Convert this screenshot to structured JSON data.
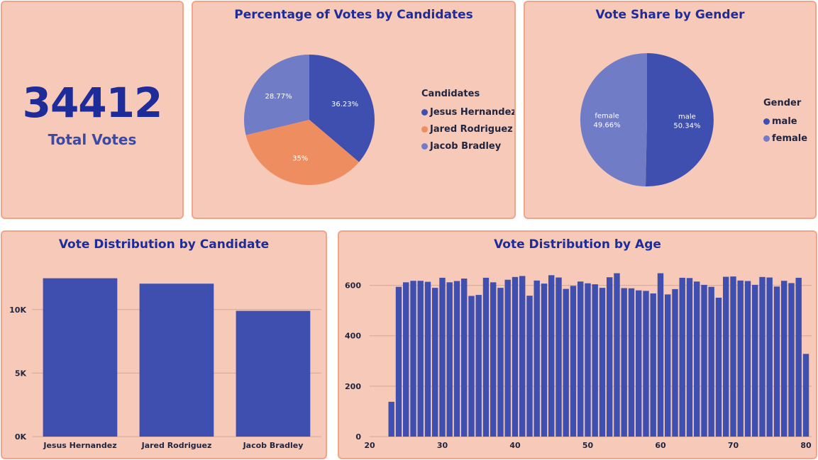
{
  "kpi": {
    "value": "34412",
    "label": "Total Votes"
  },
  "colors": {
    "blue": "#3f4fb0",
    "orange": "#ee8d60",
    "lavender": "#717cc6",
    "grid": "#d4a796"
  },
  "chart_data": [
    {
      "type": "pie",
      "title": "Percentage of Votes by Candidates",
      "legend_title": "Candidates",
      "legend_position": "right",
      "slices": [
        {
          "name": "Jesus Hernandez",
          "value": 36.23,
          "label": "36.23%",
          "color": "#3f4fb0"
        },
        {
          "name": "Jared Rodriguez",
          "value": 35,
          "label": "35%",
          "color": "#ee8d60"
        },
        {
          "name": "Jacob Bradley",
          "value": 28.77,
          "label": "28.77%",
          "color": "#717cc6"
        }
      ]
    },
    {
      "type": "pie",
      "title": "Vote Share by Gender",
      "legend_title": "Gender",
      "legend_position": "right",
      "slices": [
        {
          "name": "male",
          "value": 50.34,
          "label": "50.34%",
          "color": "#3f4fb0"
        },
        {
          "name": "female",
          "value": 49.66,
          "label": "49.66%",
          "color": "#717cc6"
        }
      ]
    },
    {
      "type": "bar",
      "title": "Vote Distribution by Candidate",
      "categories": [
        "Jesus Hernandez",
        "Jared Rodriguez",
        "Jacob Bradley"
      ],
      "values": [
        12468,
        12044,
        9900
      ],
      "ylim": [
        0,
        12500
      ],
      "yticks": [
        0,
        5000,
        10000
      ],
      "ytick_labels": [
        "0K",
        "5K",
        "10K"
      ],
      "grid": true,
      "color": "#3f4fb0"
    },
    {
      "type": "bar",
      "title": "Vote Distribution by Age",
      "x": [
        23,
        24,
        25,
        26,
        27,
        28,
        29,
        30,
        31,
        32,
        33,
        34,
        35,
        36,
        37,
        38,
        39,
        40,
        41,
        42,
        43,
        44,
        45,
        46,
        47,
        48,
        49,
        50,
        51,
        52,
        53,
        54,
        55,
        56,
        57,
        58,
        59,
        60,
        61,
        62,
        63,
        64,
        65,
        66,
        67,
        68,
        69,
        70,
        71,
        72,
        73,
        74,
        75,
        76,
        77,
        78,
        79,
        80
      ],
      "values": [
        138,
        594,
        612,
        618,
        618,
        614,
        590,
        630,
        612,
        617,
        627,
        558,
        562,
        630,
        612,
        590,
        622,
        633,
        637,
        559,
        619,
        607,
        640,
        631,
        586,
        598,
        615,
        608,
        604,
        590,
        632,
        648,
        589,
        588,
        580,
        578,
        568,
        648,
        564,
        585,
        630,
        629,
        615,
        602,
        594,
        551,
        634,
        635,
        619,
        617,
        602,
        633,
        631,
        595,
        618,
        609,
        630,
        328
      ],
      "xlim": [
        20,
        80
      ],
      "xticks": [
        20,
        30,
        40,
        50,
        60,
        70,
        80
      ],
      "ylim": [
        0,
        700
      ],
      "yticks": [
        0,
        200,
        400,
        600
      ],
      "grid": true,
      "color": "#3f4fb0"
    }
  ]
}
